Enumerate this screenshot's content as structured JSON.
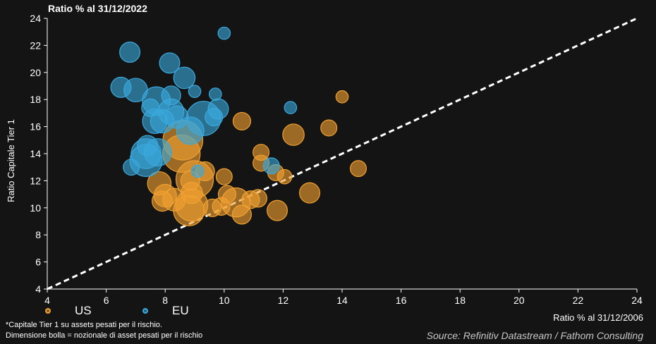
{
  "chart_data": {
    "type": "scatter",
    "title": "Ratio % al 31/12/2022",
    "xlabel": "Ratio % al 31/12/2006",
    "ylabel": "Ratio Capitale Tier 1",
    "xlim": [
      4,
      24
    ],
    "ylim": [
      4,
      24
    ],
    "xticks": [
      4,
      6,
      8,
      10,
      12,
      14,
      16,
      18,
      20,
      22,
      24
    ],
    "yticks": [
      4,
      6,
      8,
      10,
      12,
      14,
      16,
      18,
      20,
      22,
      24
    ],
    "grid": false,
    "legend_position": "bottom-left",
    "reference_line": "y = x",
    "series": [
      {
        "name": "US",
        "color": "#f0a030",
        "points": [
          {
            "x": 8.6,
            "y": 15.0,
            "size": 32
          },
          {
            "x": 8.55,
            "y": 14.0,
            "size": 28
          },
          {
            "x": 9.0,
            "y": 12.1,
            "size": 28
          },
          {
            "x": 8.9,
            "y": 10.2,
            "size": 20
          },
          {
            "x": 8.8,
            "y": 9.8,
            "size": 18
          },
          {
            "x": 10.4,
            "y": 10.4,
            "size": 16
          },
          {
            "x": 7.8,
            "y": 11.8,
            "size": 10
          },
          {
            "x": 8.0,
            "y": 10.9,
            "size": 9
          },
          {
            "x": 8.3,
            "y": 10.6,
            "size": 9
          },
          {
            "x": 7.9,
            "y": 10.5,
            "size": 7
          },
          {
            "x": 8.9,
            "y": 11.1,
            "size": 8
          },
          {
            "x": 8.85,
            "y": 12.0,
            "size": 6
          },
          {
            "x": 9.6,
            "y": 10.0,
            "size": 5
          },
          {
            "x": 9.35,
            "y": 12.7,
            "size": 6
          },
          {
            "x": 9.9,
            "y": 10.1,
            "size": 5
          },
          {
            "x": 10.0,
            "y": 12.3,
            "size": 4
          },
          {
            "x": 10.1,
            "y": 11.0,
            "size": 5
          },
          {
            "x": 10.6,
            "y": 16.4,
            "size": 5
          },
          {
            "x": 10.6,
            "y": 9.5,
            "size": 6
          },
          {
            "x": 10.9,
            "y": 10.6,
            "size": 5
          },
          {
            "x": 11.15,
            "y": 10.7,
            "size": 5
          },
          {
            "x": 11.25,
            "y": 14.1,
            "size": 4
          },
          {
            "x": 11.25,
            "y": 13.3,
            "size": 4
          },
          {
            "x": 11.75,
            "y": 12.6,
            "size": 4
          },
          {
            "x": 11.8,
            "y": 9.8,
            "size": 7
          },
          {
            "x": 12.05,
            "y": 12.3,
            "size": 3
          },
          {
            "x": 12.35,
            "y": 15.4,
            "size": 8
          },
          {
            "x": 12.9,
            "y": 11.1,
            "size": 7
          },
          {
            "x": 13.55,
            "y": 15.9,
            "size": 4
          },
          {
            "x": 14.0,
            "y": 18.2,
            "size": 2
          },
          {
            "x": 14.55,
            "y": 12.9,
            "size": 4
          }
        ]
      },
      {
        "name": "EU",
        "color": "#3aa8dc",
        "points": [
          {
            "x": 6.8,
            "y": 21.5,
            "size": 7
          },
          {
            "x": 8.15,
            "y": 20.7,
            "size": 7
          },
          {
            "x": 8.65,
            "y": 19.6,
            "size": 8
          },
          {
            "x": 6.5,
            "y": 18.9,
            "size": 7
          },
          {
            "x": 7.0,
            "y": 18.7,
            "size": 10
          },
          {
            "x": 8.2,
            "y": 18.3,
            "size": 6
          },
          {
            "x": 9.0,
            "y": 18.6,
            "size": 2
          },
          {
            "x": 9.7,
            "y": 18.4,
            "size": 2
          },
          {
            "x": 7.7,
            "y": 17.9,
            "size": 15
          },
          {
            "x": 7.5,
            "y": 17.4,
            "size": 5
          },
          {
            "x": 8.2,
            "y": 17.1,
            "size": 12
          },
          {
            "x": 8.4,
            "y": 16.7,
            "size": 9
          },
          {
            "x": 7.65,
            "y": 16.4,
            "size": 11
          },
          {
            "x": 7.9,
            "y": 16.4,
            "size": 10
          },
          {
            "x": 9.3,
            "y": 16.6,
            "size": 23
          },
          {
            "x": 9.8,
            "y": 17.3,
            "size": 7
          },
          {
            "x": 9.65,
            "y": 16.7,
            "size": 5
          },
          {
            "x": 8.85,
            "y": 15.7,
            "size": 14
          },
          {
            "x": 7.4,
            "y": 14.6,
            "size": 7
          },
          {
            "x": 7.75,
            "y": 14.1,
            "size": 14
          },
          {
            "x": 7.35,
            "y": 14.0,
            "size": 17
          },
          {
            "x": 7.35,
            "y": 13.5,
            "size": 20
          },
          {
            "x": 6.85,
            "y": 13.0,
            "size": 4
          },
          {
            "x": 10.0,
            "y": 22.9,
            "size": 2
          },
          {
            "x": 12.25,
            "y": 17.4,
            "size": 2
          },
          {
            "x": 11.6,
            "y": 13.1,
            "size": 4
          },
          {
            "x": 9.1,
            "y": 12.7,
            "size": 2
          }
        ]
      }
    ],
    "footnotes": [
      "*Capitale Tier 1 su assets pesati per il rischio.",
      "Dimensione bolla = nozionale di asset pesati per il rischio"
    ],
    "source": "Source: Refinitiv Datastream / Fathom Consulting"
  }
}
